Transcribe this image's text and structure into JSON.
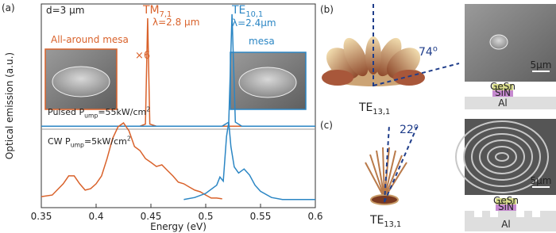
{
  "chart_data": {
    "type": "line",
    "panel_label": "(a)",
    "xlabel": "Energy (eV)",
    "ylabel": "Optical emission (a.u.)",
    "xlim": [
      0.35,
      0.6
    ],
    "xticks": [
      0.35,
      0.4,
      0.45,
      0.5,
      0.55,
      0.6
    ],
    "ylim": [
      0,
      1
    ],
    "series": [
      {
        "color": "#d9622b",
        "x": [
          0.35,
          0.44,
          0.445,
          0.447,
          0.449,
          0.455,
          0.6
        ],
        "values": [
          0.4,
          0.4,
          0.41,
          0.93,
          0.41,
          0.4,
          0.4
        ]
      },
      {
        "color": "#2b86c4",
        "x": [
          0.35,
          0.515,
          0.521,
          0.524,
          0.527,
          0.533,
          0.6
        ],
        "values": [
          0.4,
          0.4,
          0.42,
          0.95,
          0.42,
          0.4,
          0.4
        ]
      },
      {
        "color": "#d9622b",
        "x": [
          0.35,
          0.36,
          0.37,
          0.375,
          0.38,
          0.385,
          0.39,
          0.395,
          0.4,
          0.405,
          0.41,
          0.415,
          0.42,
          0.425,
          0.43,
          0.435,
          0.44,
          0.445,
          0.45,
          0.455,
          0.46,
          0.465,
          0.47,
          0.475,
          0.48,
          0.485,
          0.49,
          0.495,
          0.5,
          0.505,
          0.51,
          0.515
        ],
        "values": [
          0.054,
          0.062,
          0.117,
          0.156,
          0.156,
          0.117,
          0.086,
          0.093,
          0.117,
          0.156,
          0.241,
          0.339,
          0.397,
          0.416,
          0.377,
          0.3,
          0.28,
          0.241,
          0.222,
          0.202,
          0.21,
          0.183,
          0.156,
          0.125,
          0.117,
          0.101,
          0.086,
          0.078,
          0.062,
          0.047,
          0.047,
          0.043
        ]
      },
      {
        "color": "#2b86c4",
        "x": [
          0.48,
          0.49,
          0.5,
          0.51,
          0.513,
          0.516,
          0.519,
          0.521,
          0.523,
          0.526,
          0.53,
          0.535,
          0.54,
          0.545,
          0.55,
          0.56,
          0.57,
          0.6
        ],
        "values": [
          0.04,
          0.05,
          0.07,
          0.11,
          0.15,
          0.13,
          0.35,
          0.42,
          0.3,
          0.2,
          0.17,
          0.19,
          0.16,
          0.11,
          0.08,
          0.05,
          0.04,
          0.04
        ]
      }
    ],
    "annotations": [
      {
        "color": "#222222",
        "segments": [
          {
            "t": "d=3 μm"
          }
        ]
      },
      {
        "color": "#d9622b",
        "segments": [
          {
            "t": "TM"
          },
          {
            "t": "7,1",
            "sub": true
          }
        ]
      },
      {
        "color": "#d9622b",
        "segments": [
          {
            "t": "λ=2.8 μm"
          }
        ]
      },
      {
        "color": "#d9622b",
        "segments": [
          {
            "t": "×6"
          }
        ]
      },
      {
        "color": "#2b86c4",
        "segments": [
          {
            "t": "TE"
          },
          {
            "t": "10,1",
            "sub": true
          }
        ]
      },
      {
        "color": "#2b86c4",
        "segments": [
          {
            "t": "λ=2.4μm"
          }
        ]
      },
      {
        "color": "#2b86c4",
        "segments": [
          {
            "t": "mesa"
          }
        ]
      },
      {
        "color": "#d9622b",
        "segments": [
          {
            "t": "All-around mesa"
          }
        ]
      },
      {
        "color": "#222222",
        "segments": [
          {
            "t": "Pulsed P"
          },
          {
            "t": "ump",
            "sub": true
          },
          {
            "t": "=55kW/cm"
          },
          {
            "t": "2",
            "sup": true
          }
        ]
      },
      {
        "color": "#222222",
        "segments": [
          {
            "t": "CW P"
          },
          {
            "t": "ump",
            "sub": true
          },
          {
            "t": "=5kW/cm"
          },
          {
            "t": "2",
            "sup": true
          }
        ]
      }
    ]
  },
  "panel_b": {
    "label": "(b)",
    "angle": {
      "segments": [
        {
          "t": "74"
        },
        {
          "t": "o",
          "sup": true
        }
      ]
    },
    "mode": {
      "segments": [
        {
          "t": "TE"
        },
        {
          "t": "13,1",
          "sub": true
        }
      ]
    },
    "scale": "5μm",
    "layers": [
      "GeSn",
      "SiN",
      "Al"
    ]
  },
  "panel_c": {
    "label": "(c)",
    "angle": {
      "segments": [
        {
          "t": "22"
        },
        {
          "t": "o",
          "sup": true
        }
      ]
    },
    "mode": {
      "segments": [
        {
          "t": "TE"
        },
        {
          "t": "13,1",
          "sub": true
        }
      ]
    },
    "scale": "5μm",
    "layers": [
      "GeSn",
      "SiN",
      "Al"
    ]
  }
}
